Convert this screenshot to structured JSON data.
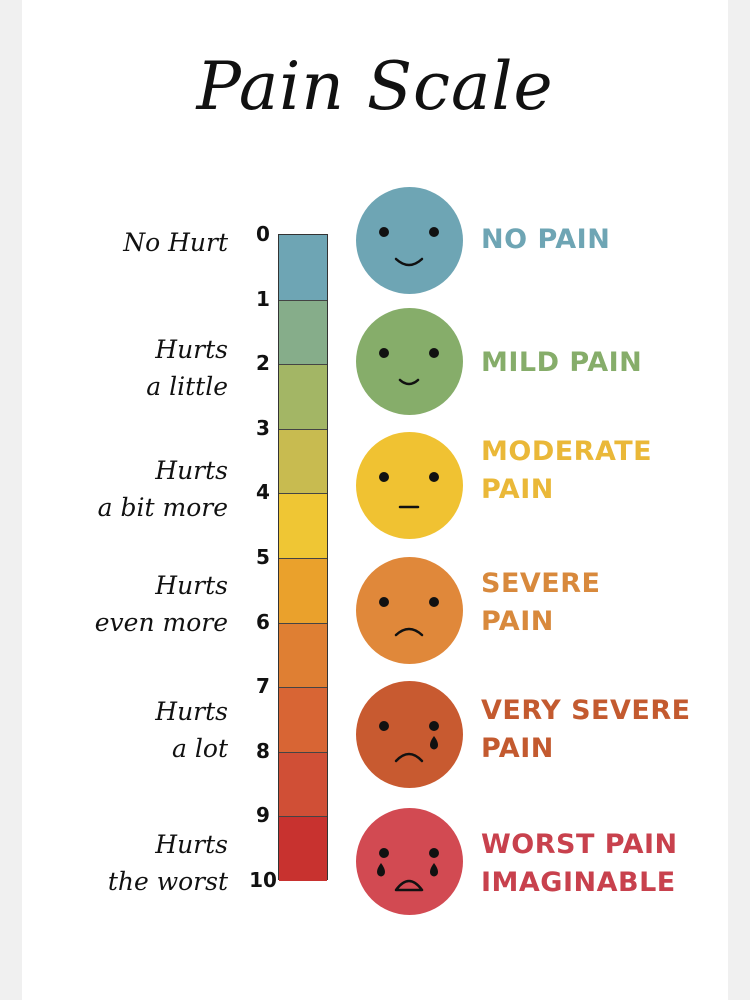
{
  "title": "Pain Scale",
  "descriptors": [
    {
      "line1": "No Hurt",
      "line2": ""
    },
    {
      "line1": "Hurts",
      "line2": "a little"
    },
    {
      "line1": "Hurts",
      "line2": "a bit more"
    },
    {
      "line1": "Hurts",
      "line2": "even more"
    },
    {
      "line1": "Hurts",
      "line2": "a lot"
    },
    {
      "line1": "Hurts",
      "line2": "the worst"
    }
  ],
  "scale_numbers": [
    "0",
    "1",
    "2",
    "3",
    "4",
    "5",
    "6",
    "7",
    "8",
    "9",
    "10"
  ],
  "bar_colors": [
    "#6ea5b4",
    "#86ad8a",
    "#a3b665",
    "#c8bb50",
    "#efc634",
    "#eaa12c",
    "#df7f33",
    "#d86534",
    "#d04f36",
    "#c8322f"
  ],
  "levels": [
    {
      "label_line1": "NO PAIN",
      "label_line2": "",
      "face_color": "#6ea5b4",
      "text_color": "#6ea5b4",
      "expression": "big-smile"
    },
    {
      "label_line1": "MILD PAIN",
      "label_line2": "",
      "face_color": "#86ad6a",
      "text_color": "#86ad6a",
      "expression": "small-smile"
    },
    {
      "label_line1": "MODERATE",
      "label_line2": "PAIN",
      "face_color": "#f0c232",
      "text_color": "#eab838",
      "expression": "neutral"
    },
    {
      "label_line1": "SEVERE",
      "label_line2": "PAIN",
      "face_color": "#e0883a",
      "text_color": "#d8893c",
      "expression": "frown"
    },
    {
      "label_line1": "VERY SEVERE",
      "label_line2": "PAIN",
      "face_color": "#c85a30",
      "text_color": "#c35a2f",
      "expression": "frown-one-tear"
    },
    {
      "label_line1": "WORST PAIN",
      "label_line2": "IMAGINABLE",
      "face_color": "#d24a52",
      "text_color": "#c8414d",
      "expression": "crying"
    }
  ]
}
